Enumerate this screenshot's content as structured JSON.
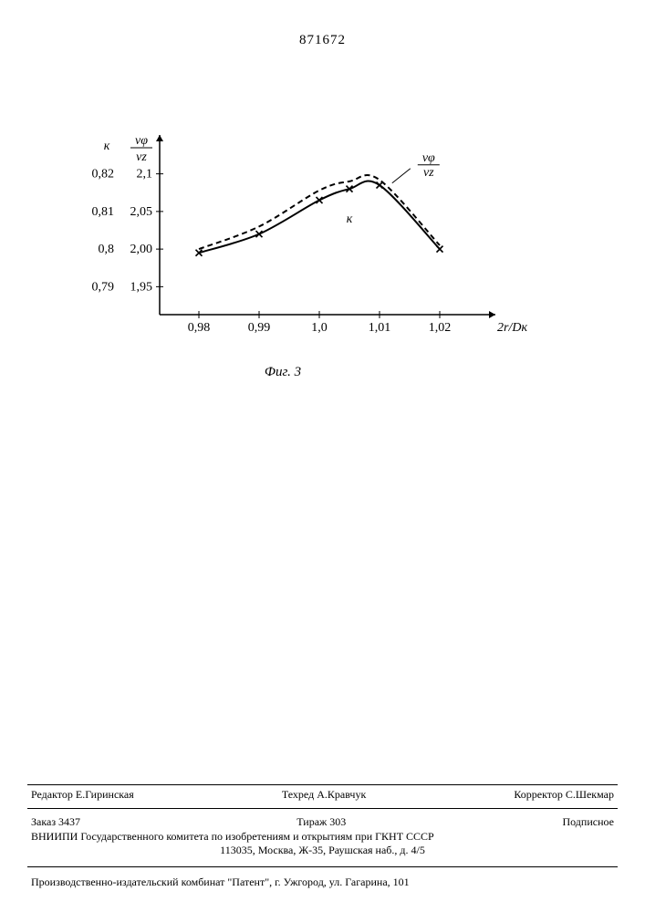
{
  "header": {
    "doc_number": "871672"
  },
  "chart": {
    "type": "line",
    "background_color": "#ffffff",
    "axis_color": "#000000",
    "axis_line_width": 1.5,
    "x": {
      "label": "2r/Dк",
      "range": [
        0.975,
        1.025
      ],
      "ticks": [
        0.98,
        0.99,
        1.0,
        1.01,
        1.02
      ],
      "tick_labels": [
        "0,98",
        "0,99",
        "1,0",
        "1,01",
        "1,02"
      ],
      "label_fontsize": 14
    },
    "y_left": {
      "label": "к",
      "range": [
        0.785,
        0.825
      ],
      "ticks": [
        0.79,
        0.8,
        0.81,
        0.82
      ],
      "tick_labels": [
        "0,79",
        "0,8",
        "0,81",
        "0,82"
      ],
      "label_fontsize": 14
    },
    "y_right": {
      "label": "vφ / vz",
      "range": [
        1.925,
        2.125
      ],
      "ticks": [
        1.95,
        2.0,
        2.05,
        2.1
      ],
      "tick_labels": [
        "1,95",
        "2,00",
        "2,05",
        "2,1"
      ],
      "label_fontsize": 14
    },
    "series": [
      {
        "name": "к",
        "axis": "y_left",
        "style": "solid",
        "line_width": 2.0,
        "color": "#000000",
        "marker": "x",
        "marker_size": 7,
        "marker_color": "#000000",
        "x": [
          0.98,
          0.99,
          1.0,
          1.005,
          1.01,
          1.02
        ],
        "y": [
          0.799,
          0.804,
          0.813,
          0.816,
          0.817,
          0.8
        ],
        "inline_label": "к",
        "label_xy": [
          1.005,
          0.811
        ]
      },
      {
        "name": "vφ/vz",
        "axis": "y_right",
        "style": "dashed",
        "dash": "6,4",
        "line_width": 2.0,
        "color": "#000000",
        "marker": "none",
        "x": [
          0.98,
          0.99,
          1.0,
          1.005,
          1.01,
          1.02
        ],
        "y": [
          2.0,
          2.03,
          2.078,
          2.09,
          2.092,
          2.005
        ],
        "inline_label": "vφ / vz",
        "label_xy": [
          1.013,
          2.095
        ]
      }
    ],
    "caption": "Фиг. 3"
  },
  "footer": {
    "editor_label": "Редактор",
    "editor_name": "Е.Гиринская",
    "techred_label": "Техред",
    "techred_name": "А.Кравчук",
    "corrector_label": "Корректор",
    "corrector_name": "С.Шекмар",
    "order": "Заказ 3437",
    "tirazh": "Тираж 303",
    "podpisnoe": "Подписное",
    "org1_line1": "ВНИИПИ Государственного комитета по изобретениям и открытиям при ГКНТ СССР",
    "org1_line2": "113035, Москва, Ж-35, Раушская наб., д. 4/5",
    "org2": "Производственно-издательский комбинат \"Патент\", г. Ужгород, ул. Гагарина, 101"
  }
}
